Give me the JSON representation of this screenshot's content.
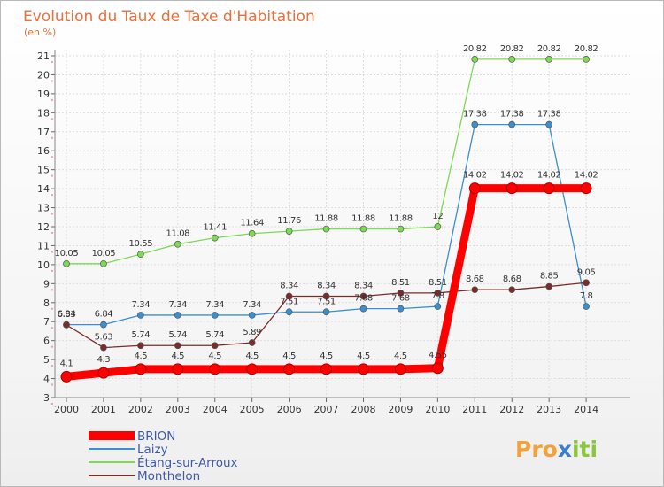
{
  "chart_data": {
    "type": "line",
    "title": "Evolution du Taux de Taxe d'Habitation",
    "ylabel": "(en %)",
    "xlabel": "",
    "ylim": [
      3,
      21
    ],
    "grid": true,
    "legend_position": "bottom-left",
    "x": [
      "2000",
      "2001",
      "2002",
      "2003",
      "2004",
      "2005",
      "2006",
      "2007",
      "2008",
      "2009",
      "2010",
      "2011",
      "2012",
      "2013",
      "2014"
    ],
    "y_ticks": [
      "3",
      "4",
      "5",
      "6",
      "7",
      "8",
      "9",
      "10",
      "11",
      "12",
      "13",
      "14",
      "15",
      "16",
      "17",
      "18",
      "19",
      "20",
      "21"
    ],
    "series": [
      {
        "name": "BRION",
        "color": "#ff0000",
        "values": [
          4.1,
          4.3,
          4.5,
          4.5,
          4.5,
          4.5,
          4.5,
          4.5,
          4.5,
          4.5,
          4.55,
          14.02,
          14.02,
          14.02,
          14.02
        ],
        "labels": [
          "4.1",
          "4.3",
          "4.5",
          "4.5",
          "4.5",
          "4.5",
          "4.5",
          "4.5",
          "4.5",
          "4.5",
          "4.55",
          "14.02",
          "14.02",
          "14.02",
          "14.02"
        ]
      },
      {
        "name": "Laizy",
        "color": "#3b8fcf",
        "values": [
          6.84,
          6.84,
          7.34,
          7.34,
          7.34,
          7.34,
          7.51,
          7.51,
          7.68,
          7.68,
          7.8,
          17.38,
          17.38,
          17.38,
          7.8
        ],
        "labels": [
          "6.84",
          "6.84",
          "7.34",
          "7.34",
          "7.34",
          "7.34",
          "7.51",
          "7.51",
          "7.68",
          "7.68",
          "7.8",
          "17.38",
          "17.38",
          "17.38",
          "7.8"
        ]
      },
      {
        "name": "Étang-sur-Arroux",
        "color": "#7ed957",
        "values": [
          10.05,
          10.05,
          10.55,
          11.08,
          11.41,
          11.64,
          11.76,
          11.88,
          11.88,
          11.88,
          12,
          20.82,
          20.82,
          20.82,
          20.82
        ],
        "labels": [
          "10.05",
          "10.05",
          "10.55",
          "11.08",
          "11.41",
          "11.64",
          "11.76",
          "11.88",
          "11.88",
          "11.88",
          "12",
          "20.82",
          "20.82",
          "20.82",
          "20.82"
        ]
      },
      {
        "name": "Monthelon",
        "color": "#7a2b2b",
        "values": [
          6.83,
          5.63,
          5.74,
          5.74,
          5.74,
          5.89,
          8.34,
          8.34,
          8.34,
          8.51,
          8.51,
          8.68,
          8.68,
          8.85,
          9.05
        ],
        "labels": [
          "6.83",
          "5.63",
          "5.74",
          "5.74",
          "5.74",
          "5.89",
          "8.34",
          "8.34",
          "8.34",
          "8.51",
          "8.51",
          "8.68",
          "8.68",
          "8.85",
          "9.05"
        ]
      }
    ]
  },
  "logo": {
    "part1": "Pro",
    "part2": "x",
    "part3": "iti"
  },
  "colors": {
    "title": "#e8703a",
    "grid": "#dddddd",
    "legend_text": "#3f59a8"
  }
}
